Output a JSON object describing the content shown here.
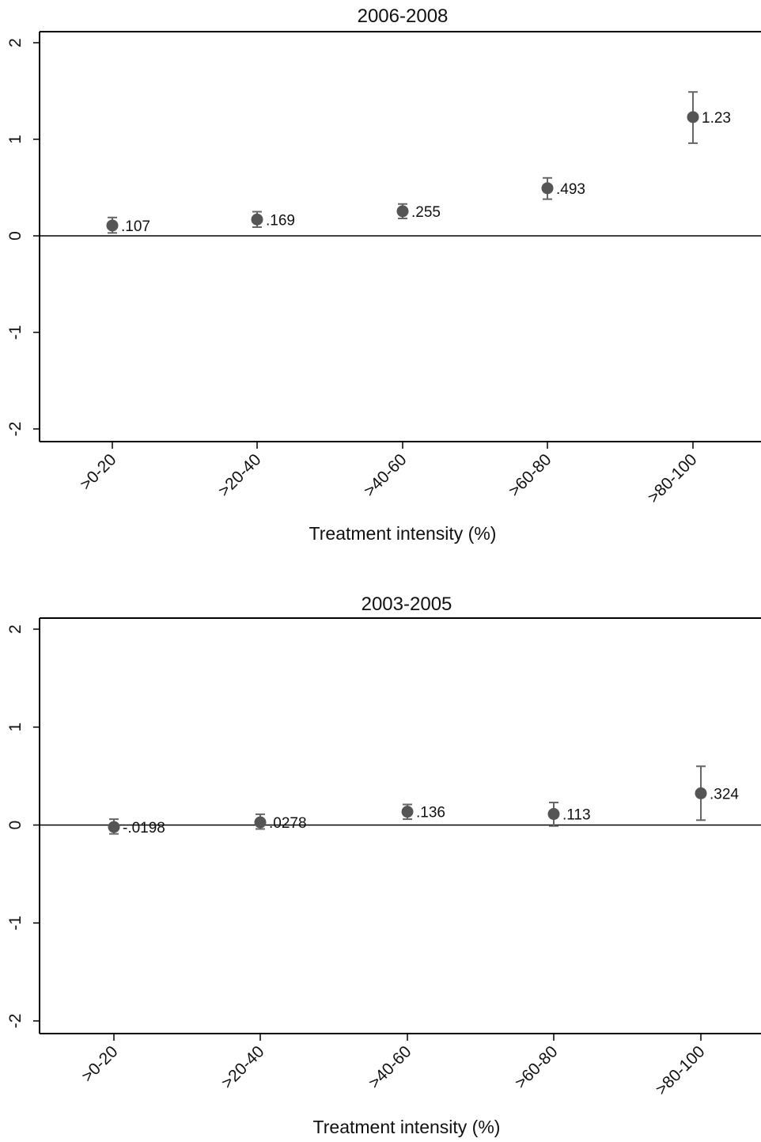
{
  "chart_data": [
    {
      "type": "scatter",
      "title": "2006-2008",
      "xlabel": "Treatment intensity (%)",
      "ylabel": "",
      "categories": [
        ">0-20",
        ">20-40",
        ">40-60",
        ">60-80",
        ">80-100"
      ],
      "values": [
        0.107,
        0.169,
        0.255,
        0.493,
        1.23
      ],
      "value_labels": [
        ".107",
        ".169",
        ".255",
        ".493",
        "1.23"
      ],
      "ci_low": [
        0.03,
        0.09,
        0.18,
        0.38,
        0.96
      ],
      "ci_high": [
        0.19,
        0.25,
        0.33,
        0.6,
        1.49
      ],
      "yticks": [
        -2,
        -1,
        0,
        1,
        2
      ],
      "ytick_labels": [
        "-2",
        "-1",
        "0",
        "1",
        "2"
      ],
      "ylim": [
        -2.1,
        2.12
      ],
      "reference_line": 0,
      "grid": false,
      "marker_color": "#555555",
      "line_color": "#000000"
    },
    {
      "type": "scatter",
      "title": "2003-2005",
      "xlabel": "Treatment intensity (%)",
      "ylabel": "",
      "categories": [
        ">0-20",
        ">20-40",
        ">40-60",
        ">60-80",
        ">80-100"
      ],
      "values": [
        -0.0198,
        0.0278,
        0.136,
        0.113,
        0.324
      ],
      "value_labels": [
        "-.0198",
        ".0278",
        ".136",
        ".113",
        ".324"
      ],
      "ci_low": [
        -0.09,
        -0.04,
        0.06,
        -0.01,
        0.05
      ],
      "ci_high": [
        0.06,
        0.11,
        0.21,
        0.23,
        0.6
      ],
      "yticks": [
        -2,
        -1,
        0,
        1,
        2
      ],
      "ytick_labels": [
        "-2",
        "-1",
        "0",
        "1",
        "2"
      ],
      "ylim": [
        -2.1,
        2.12
      ],
      "reference_line": 0,
      "grid": false,
      "marker_color": "#555555",
      "line_color": "#000000"
    }
  ]
}
